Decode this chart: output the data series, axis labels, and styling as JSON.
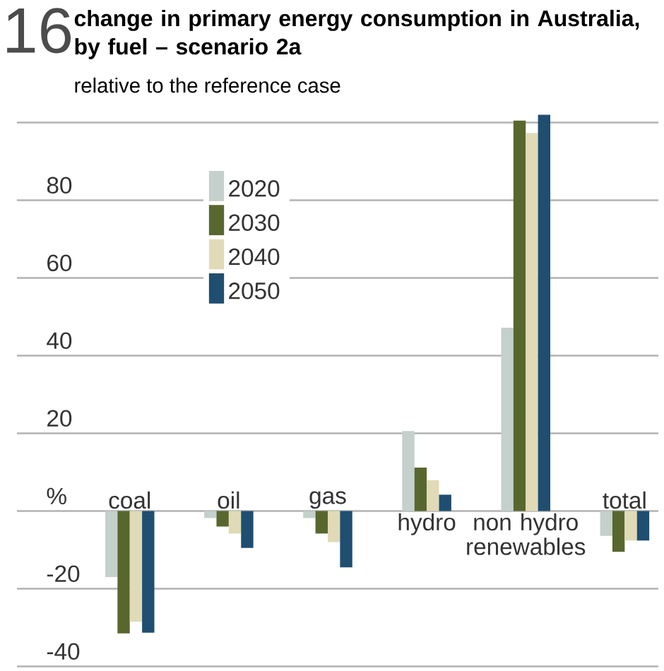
{
  "chart_data": {
    "type": "bar",
    "title": "change in primary energy consumption in Australia, by fuel – scenario 2a",
    "subtitle": "relative to the reference case",
    "annotations": [
      "16"
    ],
    "categories": [
      "coal",
      "oil",
      "gas",
      "hydro",
      "non hydro renewables",
      "total"
    ],
    "series": [
      {
        "name": "2020",
        "color": "#c3d0cb",
        "values": [
          -17,
          -1.8,
          -1.8,
          20.6,
          47.2,
          -6.4
        ]
      },
      {
        "name": "2030",
        "color": "#58672e",
        "values": [
          -31.5,
          -4,
          -5.8,
          11.2,
          100.5,
          -10.5
        ]
      },
      {
        "name": "2040",
        "color": "#e0dab7",
        "values": [
          -28.5,
          -5.8,
          -8,
          7.9,
          97.3,
          -7.6
        ]
      },
      {
        "name": "2050",
        "color": "#1f4e70",
        "values": [
          -31.3,
          -9.5,
          -14.5,
          4.2,
          102,
          -7.6
        ]
      }
    ],
    "ylim": [
      -41,
      103
    ],
    "yticks": [
      -40,
      -20,
      {
        "value": 0,
        "label": "%"
      },
      20,
      40,
      60,
      80,
      {
        "value": 100,
        "label": null
      }
    ],
    "grid": "y",
    "legend": "top left"
  }
}
